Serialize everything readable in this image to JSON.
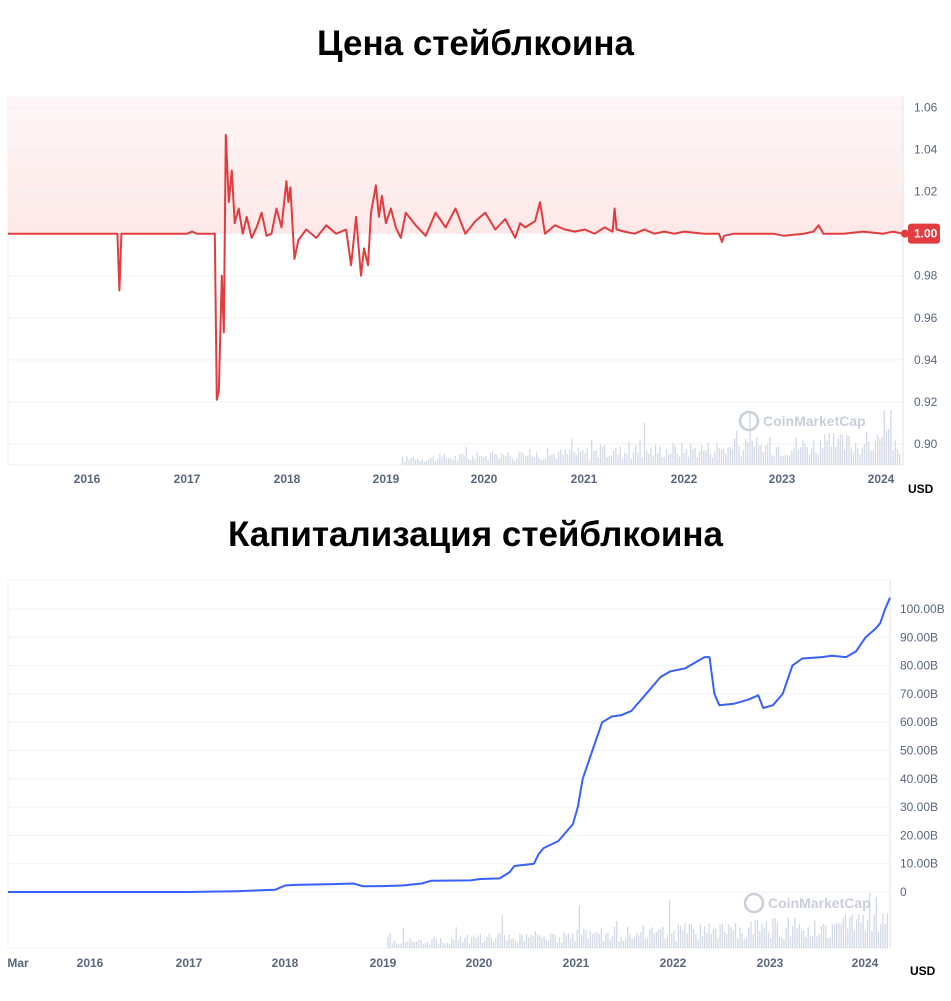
{
  "chart_data": [
    {
      "type": "line",
      "title": "Цена стейблкоина",
      "unit": "USD",
      "watermark": "CoinMarketCap",
      "line_color": "#e23c3f",
      "fill_color": "#fde8e8",
      "ylim": [
        0.89,
        1.065
      ],
      "y_ticks": [
        "1.06",
        "1.04",
        "1.02",
        "1.00",
        "0.98",
        "0.96",
        "0.94",
        "0.92",
        "0.90"
      ],
      "x_ticks": [
        "2016",
        "2017",
        "2018",
        "2019",
        "2020",
        "2021",
        "2022",
        "2023",
        "2024"
      ],
      "x_range": [
        2015.2,
        2024.2
      ],
      "last_value_label": "1.00",
      "series": [
        {
          "x": [
            2015.2,
            2016.3,
            2016.32,
            2016.34,
            2016.36,
            2017.0,
            2017.05,
            2017.1,
            2017.2,
            2017.28,
            2017.3,
            2017.32,
            2017.35,
            2017.37,
            2017.39,
            2017.42,
            2017.45,
            2017.48,
            2017.52,
            2017.56,
            2017.6,
            2017.65,
            2017.7,
            2017.75,
            2017.8,
            2017.85,
            2017.9,
            2017.95,
            2018.0,
            2018.02,
            2018.04,
            2018.08,
            2018.12,
            2018.2,
            2018.3,
            2018.4,
            2018.5,
            2018.6,
            2018.65,
            2018.7,
            2018.75,
            2018.78,
            2018.82,
            2018.85,
            2018.9,
            2018.93,
            2018.96,
            2019.0,
            2019.05,
            2019.1,
            2019.15,
            2019.2,
            2019.3,
            2019.4,
            2019.5,
            2019.6,
            2019.7,
            2019.8,
            2019.9,
            2020.0,
            2020.1,
            2020.2,
            2020.3,
            2020.35,
            2020.4,
            2020.5,
            2020.55,
            2020.6,
            2020.7,
            2020.8,
            2020.9,
            2021.0,
            2021.1,
            2021.2,
            2021.28,
            2021.3,
            2021.32,
            2021.4,
            2021.5,
            2021.6,
            2021.7,
            2021.8,
            2021.9,
            2022.0,
            2022.2,
            2022.35,
            2022.38,
            2022.4,
            2022.5,
            2022.7,
            2022.9,
            2023.0,
            2023.2,
            2023.3,
            2023.35,
            2023.4,
            2023.6,
            2023.8,
            2024.0,
            2024.1,
            2024.2
          ],
          "y": [
            1.0,
            1.0,
            0.973,
            1.0,
            1.0,
            1.0,
            1.001,
            1.0,
            1.0,
            1.0,
            0.921,
            0.925,
            0.98,
            0.953,
            1.047,
            1.015,
            1.03,
            1.005,
            1.012,
            1.0,
            1.008,
            0.998,
            1.003,
            1.01,
            0.999,
            1.0,
            1.012,
            1.003,
            1.025,
            1.015,
            1.022,
            0.988,
            0.997,
            1.002,
            0.998,
            1.004,
            1.0,
            1.002,
            0.985,
            1.008,
            0.98,
            0.993,
            0.985,
            1.01,
            1.023,
            1.008,
            1.018,
            1.005,
            1.012,
            1.003,
            0.998,
            1.01,
            1.004,
            0.999,
            1.01,
            1.003,
            1.012,
            1.0,
            1.006,
            1.01,
            1.002,
            1.007,
            0.998,
            1.005,
            1.003,
            1.006,
            1.015,
            1.0,
            1.004,
            1.002,
            1.001,
            1.002,
            1.0,
            1.003,
            1.001,
            1.012,
            1.002,
            1.001,
            1.0,
            1.002,
            1.0,
            1.001,
            1.0,
            1.001,
            1.0,
            1.0,
            0.996,
            0.999,
            1.0,
            1.0,
            1.0,
            0.999,
            1.0,
            1.001,
            1.004,
            1.0,
            1.0,
            1.001,
            1.0,
            1.001,
            1.0
          ]
        }
      ]
    },
    {
      "type": "line",
      "title": "Капитализация стейблкоина",
      "unit": "USD",
      "watermark": "CoinMarketCap",
      "line_color": "#3861fb",
      "ylim": [
        -5,
        105
      ],
      "y_ticks": [
        "100.00B",
        "90.00B",
        "80.00B",
        "70.00B",
        "60.00B",
        "50.00B",
        "40.00B",
        "30.00B",
        "20.00B",
        "10.00B",
        "0"
      ],
      "x_ticks": [
        "Mar",
        "2016",
        "2017",
        "2018",
        "2019",
        "2020",
        "2021",
        "2022",
        "2023",
        "2024"
      ],
      "x_range": [
        2015.16,
        2024.2
      ],
      "series": [
        {
          "x": [
            2015.16,
            2017.0,
            2017.5,
            2017.9,
            2018.0,
            2018.1,
            2018.5,
            2018.7,
            2018.8,
            2019.0,
            2019.2,
            2019.4,
            2019.5,
            2019.9,
            2020.0,
            2020.2,
            2020.3,
            2020.35,
            2020.55,
            2020.6,
            2020.65,
            2020.8,
            2020.95,
            2021.0,
            2021.05,
            2021.15,
            2021.25,
            2021.35,
            2021.45,
            2021.55,
            2021.65,
            2021.75,
            2021.85,
            2021.95,
            2022.1,
            2022.3,
            2022.35,
            2022.4,
            2022.45,
            2022.6,
            2022.75,
            2022.85,
            2022.9,
            2023.0,
            2023.1,
            2023.2,
            2023.3,
            2023.5,
            2023.6,
            2023.75,
            2023.85,
            2023.95,
            2024.05,
            2024.1,
            2024.15,
            2024.2
          ],
          "y": [
            0,
            0,
            0.3,
            0.8,
            2.3,
            2.5,
            2.8,
            3.0,
            2.0,
            2.1,
            2.3,
            3.0,
            4.0,
            4.1,
            4.6,
            4.8,
            7.0,
            9.2,
            10.0,
            13.5,
            15.5,
            18.0,
            24.0,
            30.0,
            40.0,
            50.0,
            60.0,
            62.0,
            62.5,
            64.0,
            68.0,
            72.0,
            76.0,
            78.0,
            79.0,
            83.0,
            83.0,
            70.0,
            66.0,
            66.5,
            68.0,
            69.5,
            65.0,
            66.0,
            70.0,
            80.0,
            82.5,
            83.0,
            83.5,
            83.0,
            85.0,
            90.0,
            93.0,
            95.0,
            100.0,
            104.0
          ]
        }
      ]
    }
  ]
}
